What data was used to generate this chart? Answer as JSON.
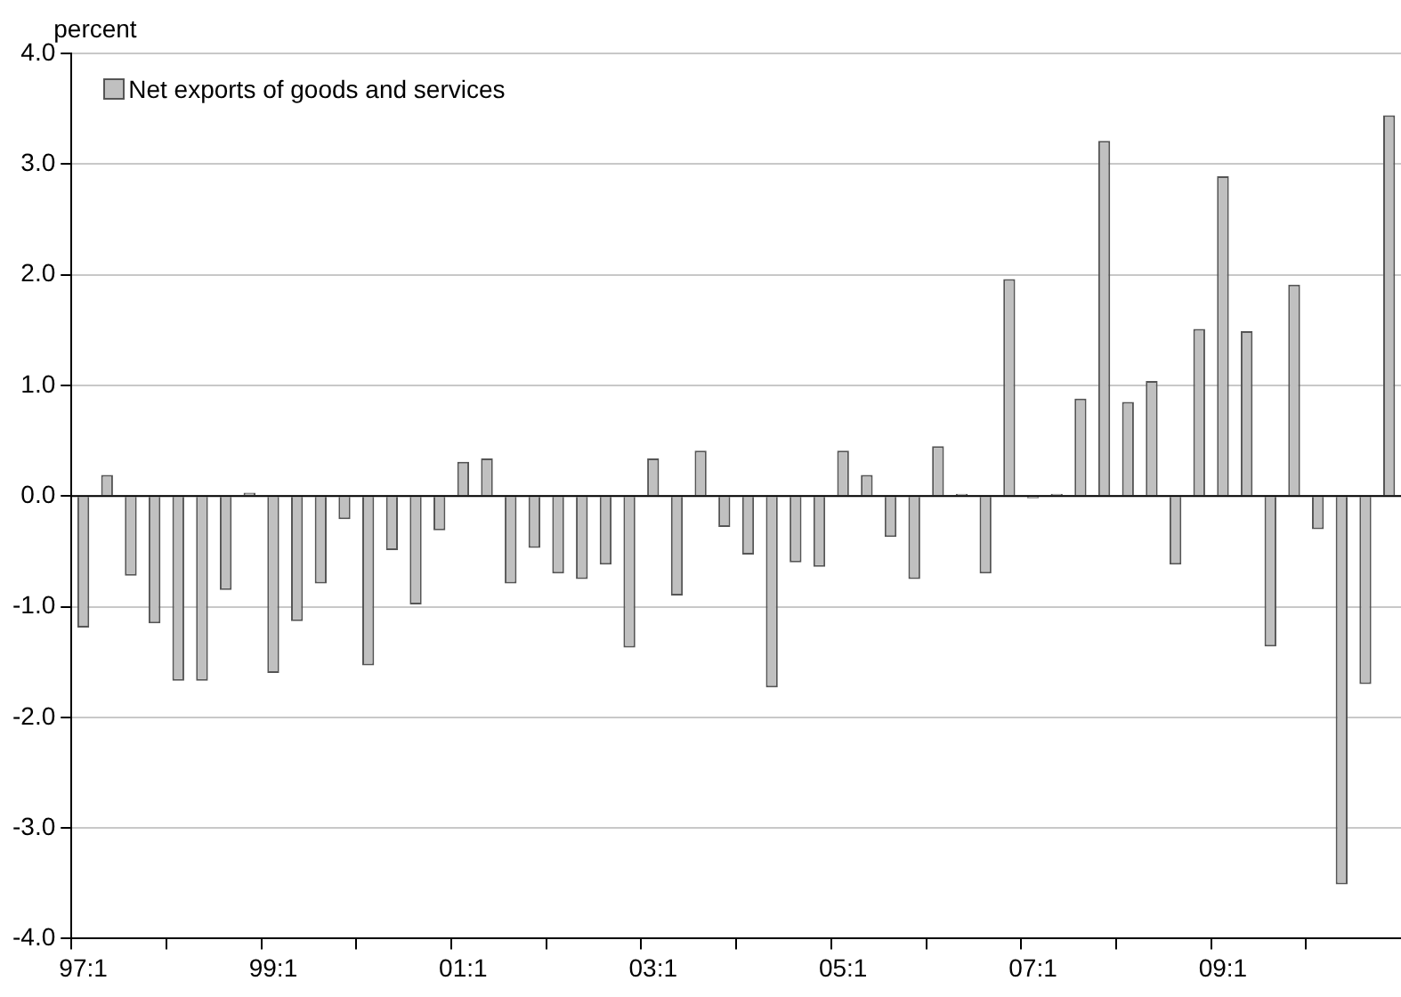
{
  "chart_data": {
    "type": "bar",
    "ylabel": "percent",
    "categories": [
      "97:1",
      null,
      null,
      null,
      null,
      null,
      null,
      null,
      "99:1",
      null,
      null,
      null,
      null,
      null,
      null,
      null,
      "01:1",
      null,
      null,
      null,
      null,
      null,
      null,
      null,
      "03:1",
      null,
      null,
      null,
      null,
      null,
      null,
      null,
      "05:1",
      null,
      null,
      null,
      null,
      null,
      null,
      null,
      "07:1",
      null,
      null,
      null,
      null,
      null,
      null,
      null,
      "09:1",
      null,
      null,
      null,
      null,
      null,
      null,
      null
    ],
    "series": [
      {
        "name": "Net exports of goods and services",
        "color": "#c0c0c0",
        "values": [
          -1.19,
          0.19,
          -0.72,
          -1.15,
          -1.67,
          -1.67,
          -0.85,
          0.03,
          -1.6,
          -1.13,
          -0.79,
          -0.21,
          -1.53,
          -0.49,
          -0.98,
          -0.31,
          0.31,
          0.34,
          -0.79,
          -0.47,
          -0.7,
          -0.75,
          -0.62,
          -1.37,
          0.34,
          -0.9,
          0.41,
          -0.28,
          -0.53,
          -1.73,
          -0.6,
          -0.64,
          0.41,
          0.19,
          -0.37,
          -0.75,
          0.45,
          0.02,
          -0.7,
          1.96,
          -0.02,
          0.02,
          0.88,
          3.21,
          0.85,
          1.04,
          -0.62,
          1.51,
          2.89,
          1.49,
          -1.36,
          1.91,
          -0.3,
          -3.51,
          -1.7,
          3.44
        ]
      }
    ],
    "ylim": [
      -4,
      4
    ],
    "yticks": [
      {
        "value": -4,
        "label": "-4.0"
      },
      {
        "value": -3,
        "label": "-3.0"
      },
      {
        "value": -2,
        "label": "-2.0"
      },
      {
        "value": -1,
        "label": "-1.0"
      },
      {
        "value": 0,
        "label": "0.0"
      },
      {
        "value": 1,
        "label": "1.0"
      },
      {
        "value": 2,
        "label": "2.0"
      },
      {
        "value": 3,
        "label": "3.0"
      },
      {
        "value": 4,
        "label": "4.0"
      }
    ],
    "grid": "y",
    "legend": "top left"
  }
}
